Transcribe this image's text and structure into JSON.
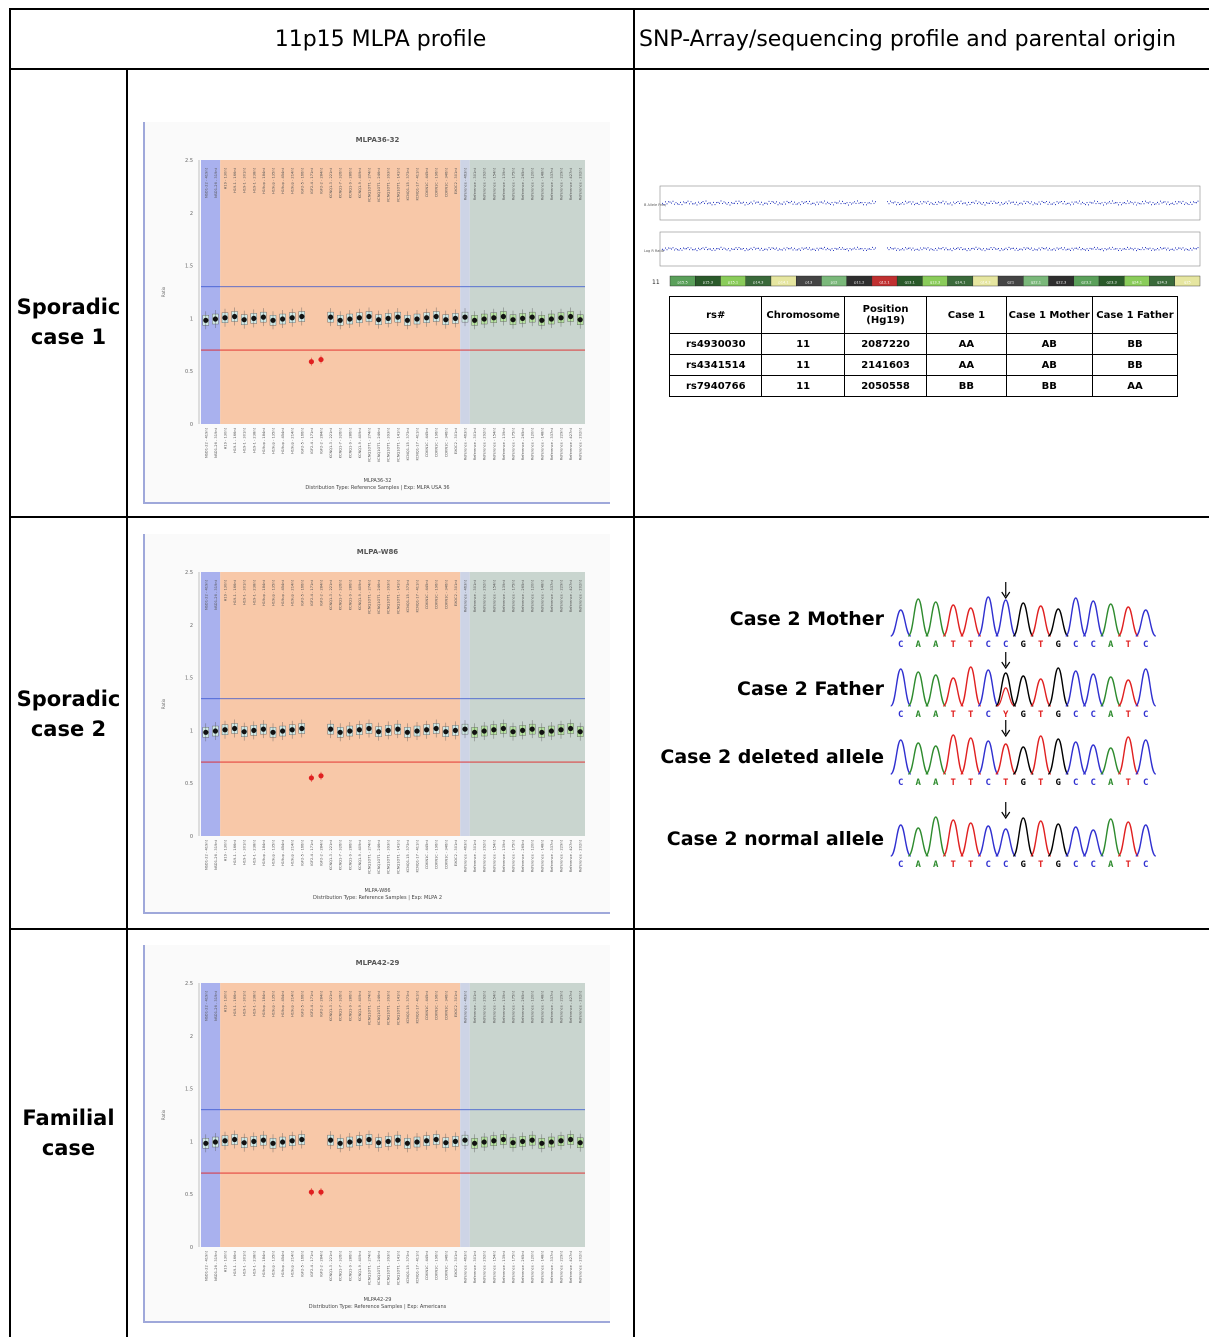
{
  "headers": {
    "col1": "11p15 MLPA profile",
    "col2": "SNP-Array/sequencing profile and parental origin"
  },
  "rows": [
    {
      "label1": "Sporadic",
      "label2": "case 1"
    },
    {
      "label1": "Sporadic",
      "label2": "case 2"
    },
    {
      "label1": "Familial",
      "label2": "case"
    }
  ],
  "mlpa": [
    {
      "title": "MLPA36-32",
      "sample": "MLPA36-32",
      "footer": "Distribution Type: Reference Samples | Exp: MLPA USA 36",
      "ratio_label": "Ratio",
      "chart_data": {
        "type": "scatter",
        "ylim": [
          0,
          2.5
        ],
        "y_ticks": [
          "0",
          "0.5",
          "1",
          "1.5",
          "2",
          "2.5"
        ],
        "upper_threshold": 1.3,
        "lower_threshold": 0.7,
        "deleted_probes_ratio": [
          0.59,
          0.61
        ],
        "typical_ratio": 1.0
      }
    },
    {
      "title": "MLPA-W86",
      "sample": "MLPA-W86",
      "footer": "Distribution Type: Reference Samples | Exp: MLPA 2",
      "ratio_label": "Ratio",
      "chart_data": {
        "type": "scatter",
        "ylim": [
          0,
          2.5
        ],
        "y_ticks": [
          "0",
          "0.5",
          "1",
          "1.5",
          "2",
          "2.5"
        ],
        "upper_threshold": 1.3,
        "lower_threshold": 0.7,
        "deleted_probes_ratio": [
          0.55,
          0.57
        ],
        "typical_ratio": 1.0
      }
    },
    {
      "title": "MLPA42-29",
      "sample": "MLPA42-29",
      "footer": "Distribution Type: Reference Samples | Exp: Americans",
      "ratio_label": "Ratio",
      "chart_data": {
        "type": "scatter",
        "ylim": [
          0,
          2.5
        ],
        "y_ticks": [
          "0",
          "0.5",
          "1",
          "1.5",
          "2",
          "2.5"
        ],
        "upper_threshold": 1.3,
        "lower_threshold": 0.7,
        "deleted_probes_ratio": [
          0.52,
          0.52
        ],
        "typical_ratio": 1.0
      }
    }
  ],
  "probe_labels": [
    "NSD1-22 - 419nt",
    "NSD1-26 - 319nt",
    "H19 - 130nt",
    "H19-1 - 166nt",
    "H19-1 - 301nt",
    "H19-1 - 238nt",
    "H19up - 184nt",
    "H19up - 135nt",
    "H19up - 454nt",
    "H19up - 214nt",
    "IGF2-5 - 166nt",
    "IGF2-4 - 171nt",
    "IGF2-2 - 284nt",
    "KCNQ1-3 - 221nt",
    "KCNQ1-7 - 326nt",
    "KCNQ1-9 - 286nt",
    "KCNQ1-9 - 409nt",
    "KCNQ1OT1 - 274nt",
    "KCNQ1OT1 - 246nt",
    "KCNQ1OT1 - 393nt",
    "KCNQ1OT1 - 141nt",
    "KCNQ1-15 - 373nt",
    "KCNQ1-17 - 411nt",
    "CDKN1C - 445nt",
    "CDKN1C - 196nt",
    "CDKN1C - 346nt",
    "EXOC2 - 301nt",
    "Reference - 463nt",
    "Reference - 301nt",
    "Reference - 292nt",
    "Reference - 154nt",
    "Reference - 139nt",
    "Reference - 175nt",
    "Reference - 265nt",
    "Reference - 120nt",
    "Reference - 148nt",
    "Reference - 337nt",
    "Reference - 229nt",
    "Reference - 427nt",
    "Reference - 202nt"
  ],
  "snp_array": {
    "track1": "Log R Ratio",
    "track2": "B Allele Freq",
    "caption": "11",
    "bands": [
      "p15.5",
      "p15.3",
      "p15.1",
      "p14.3",
      "p14.1",
      "p13",
      "p12",
      "p11.2",
      "q12.1",
      "q13.1",
      "q13.3",
      "q14.1",
      "q14.3",
      "q21",
      "q22.1",
      "q22.3",
      "q23.2",
      "q23.3",
      "q24.1",
      "q24.3",
      "q25"
    ]
  },
  "snp_table": {
    "headers": [
      "rs#",
      "Chromosome",
      "Position (Hg19)",
      "Case 1",
      "Case 1 Mother",
      "Case 1 Father"
    ],
    "rows": [
      [
        "rs4930030",
        "11",
        "2087220",
        "AA",
        "AB",
        "BB"
      ],
      [
        "rs4341514",
        "11",
        "2141603",
        "AA",
        "AB",
        "BB"
      ],
      [
        "rs7940766",
        "11",
        "2050558",
        "BB",
        "BB",
        "AA"
      ]
    ]
  },
  "sequencing": {
    "tracks": [
      {
        "label": "Case 2 Mother",
        "bases": "CAATTCCGTGCCATC"
      },
      {
        "label": "Case 2 Father",
        "bases": "CAATTCYGTGCCATC"
      },
      {
        "label": "Case 2 deleted allele",
        "bases": "CAATTCTGTGCCATC"
      },
      {
        "label": "Case 2 normal allele",
        "bases": "CAATTCCGTGCCATC"
      }
    ],
    "base_colors": {
      "A": "#2e8b2e",
      "C": "#3030d0",
      "G": "#000000",
      "T": "#e02020",
      "Y": "#000000"
    }
  }
}
